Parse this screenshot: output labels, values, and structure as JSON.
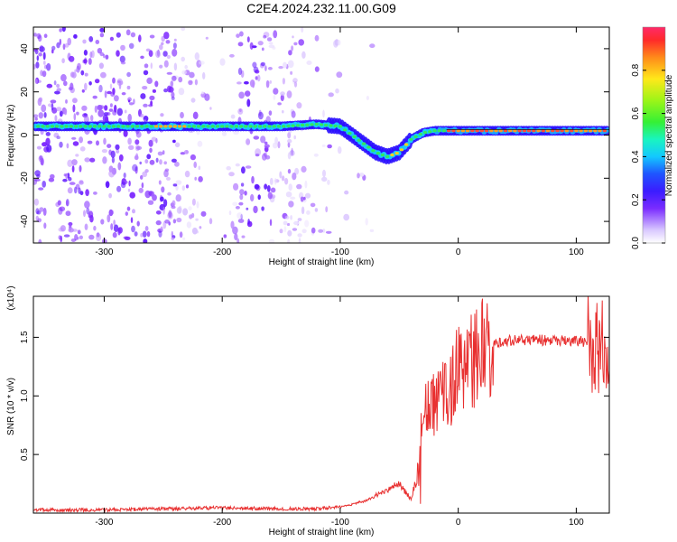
{
  "title": "C2E4.2024.232.11.00.G09",
  "chart_data": [
    {
      "type": "heatmap",
      "xlabel": "Height of straight line (km)",
      "ylabel": "Frequency (Hz)",
      "xlim": [
        -360,
        128
      ],
      "ylim": [
        -50,
        50
      ],
      "xticks": [
        -300,
        -200,
        -100,
        0,
        100
      ],
      "yticks": [
        -40,
        -20,
        0,
        20,
        40
      ],
      "colorbar": {
        "label": "Normalized spectral amplitude",
        "range": [
          0.0,
          1.0
        ],
        "ticks": [
          0.0,
          0.2,
          0.4,
          0.6,
          0.8
        ],
        "tick_labels": [
          "0.0",
          "0.2",
          "0.4",
          "0.6",
          "0.8"
        ]
      },
      "ridge": {
        "x": [
          -360,
          -300,
          -250,
          -200,
          -150,
          -120,
          -100,
          -90,
          -80,
          -70,
          -60,
          -50,
          -40,
          -30,
          -20,
          -10,
          0,
          20,
          50,
          80,
          100,
          128
        ],
        "y": [
          4,
          4,
          4,
          4,
          4,
          5,
          4,
          0,
          -4,
          -8,
          -10,
          -8,
          -2,
          1,
          2,
          2,
          2,
          2,
          2,
          2,
          2,
          2
        ]
      }
    },
    {
      "type": "line",
      "xlabel": "Height of straight line (km)",
      "ylabel": "SNR (10 * v/v)",
      "y_multiplier": "(x10⁴)",
      "xlim": [
        -360,
        128
      ],
      "ylim": [
        0,
        1.85
      ],
      "xticks": [
        -300,
        -200,
        -100,
        0,
        100
      ],
      "yticks": [
        0.5,
        1.0,
        1.5
      ],
      "ytick_labels": [
        "0.5",
        "1.0",
        "1.5"
      ],
      "series": [
        {
          "color": "#e83030",
          "x": [
            -360,
            -300,
            -250,
            -200,
            -150,
            -120,
            -100,
            -80,
            -60,
            -50,
            -40,
            -35,
            -30,
            -20,
            -10,
            0,
            10,
            20,
            30,
            40,
            60,
            80,
            100,
            110,
            118,
            125,
            128
          ],
          "y": [
            0.02,
            0.02,
            0.03,
            0.04,
            0.03,
            0.03,
            0.05,
            0.1,
            0.2,
            0.25,
            0.12,
            0.3,
            0.85,
            0.9,
            1.05,
            1.2,
            1.3,
            1.4,
            1.45,
            1.47,
            1.48,
            1.47,
            1.47,
            1.46,
            1.4,
            1.45,
            1.44
          ]
        }
      ]
    }
  ]
}
